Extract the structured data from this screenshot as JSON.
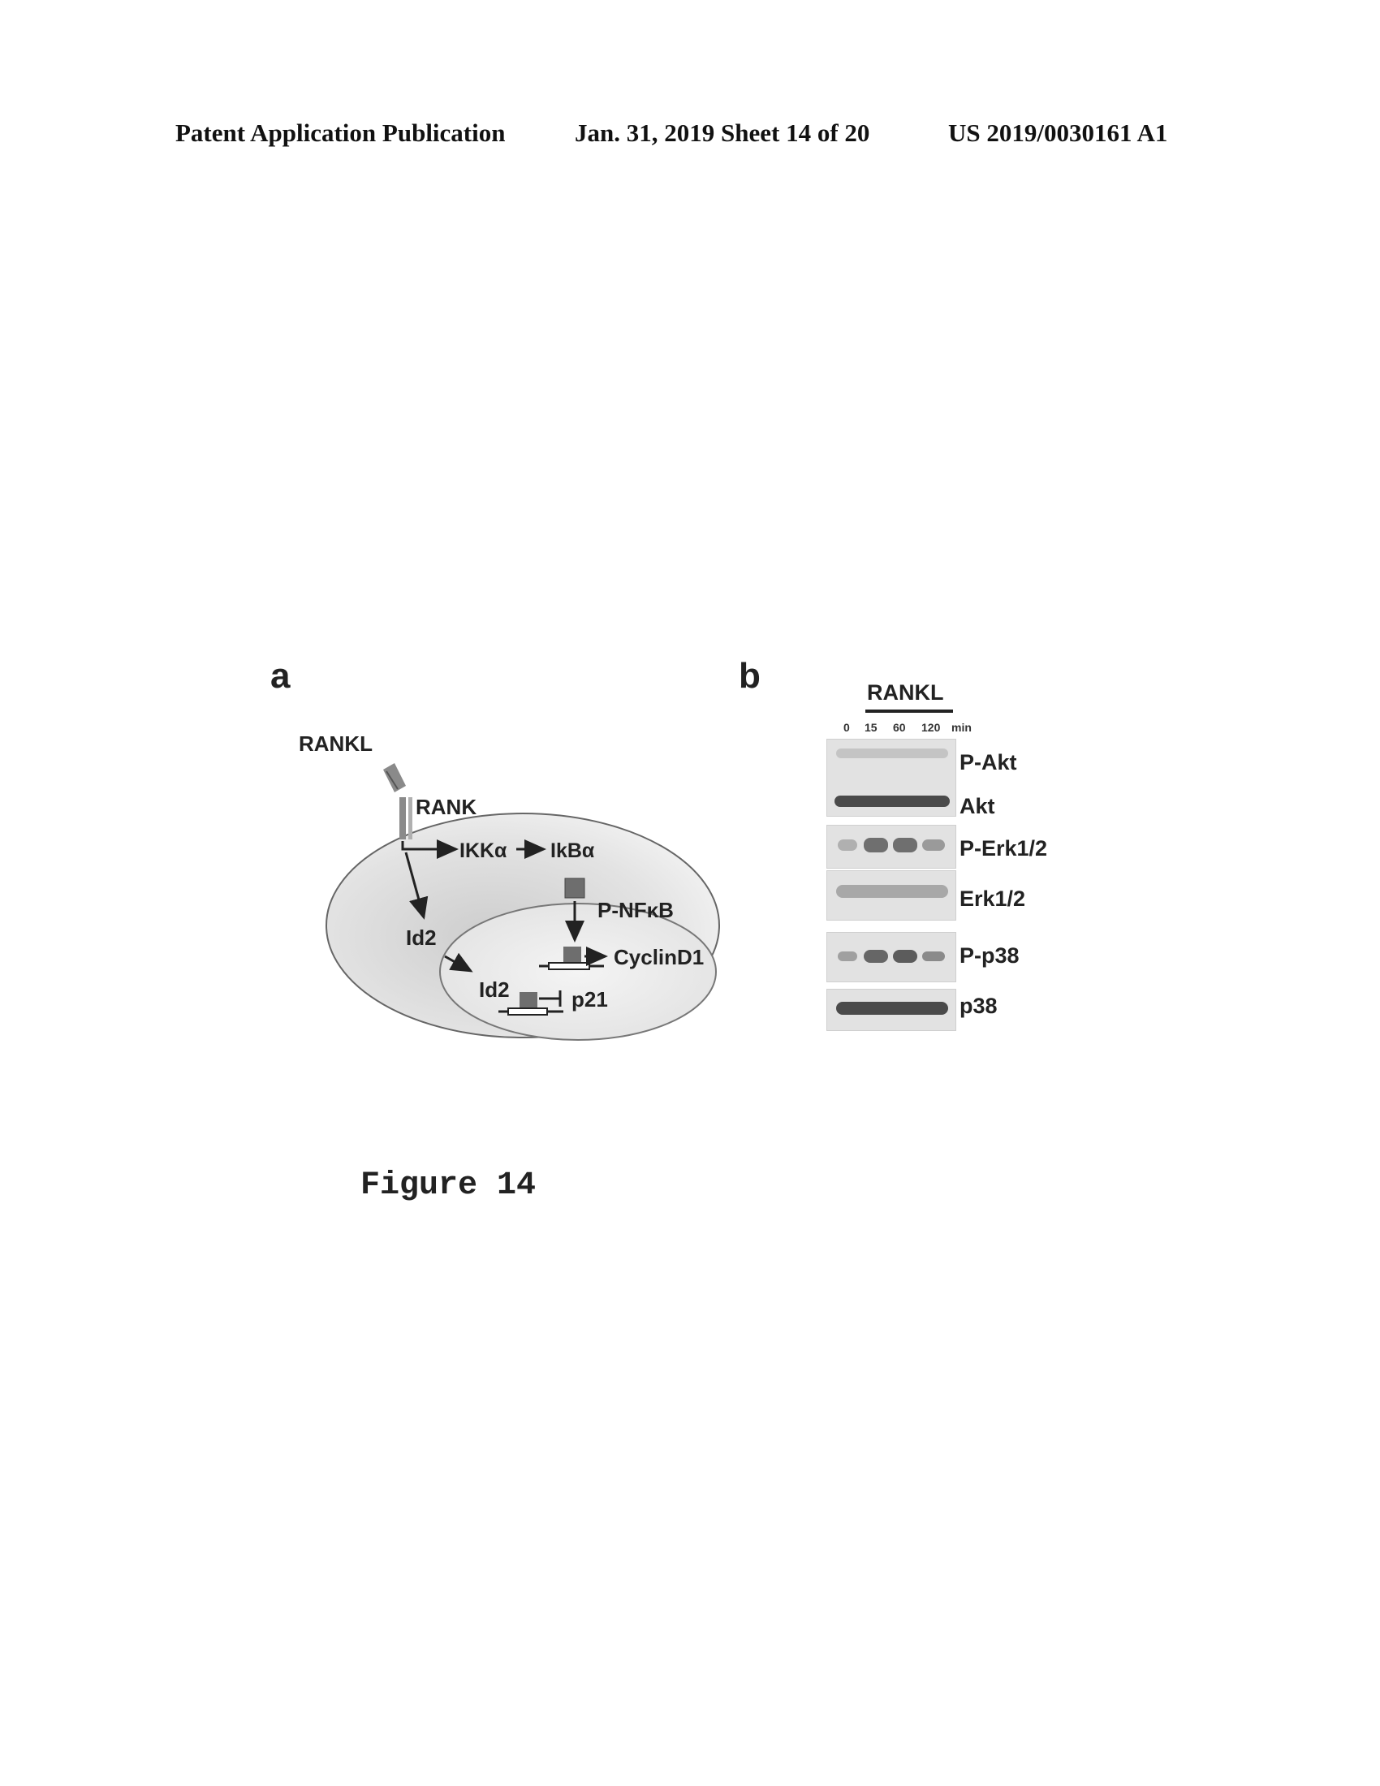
{
  "header": {
    "publication": "Patent Application Publication",
    "date_sheet": "Jan. 31, 2019  Sheet 14 of 20",
    "number": "US 2019/0030161 A1"
  },
  "panel_a": {
    "label": "a",
    "rankl": "RANKL",
    "rank": "RANK",
    "ikka": "IKKα",
    "ikba": "IkBα",
    "pnfkb": "P-NFκB",
    "id2_cyto": "Id2",
    "id2_nuc": "Id2",
    "cyclind1": "CyclinD1",
    "p21": "p21"
  },
  "panel_b": {
    "label": "b",
    "treatment": "RANKL",
    "times": [
      "0",
      "15",
      "60",
      "120"
    ],
    "time_unit": "min",
    "rows": [
      "P-Akt",
      "Akt",
      "P-Erk1/2",
      "Erk1/2",
      "P-p38",
      "p38"
    ]
  },
  "figure_caption": "Figure 14"
}
